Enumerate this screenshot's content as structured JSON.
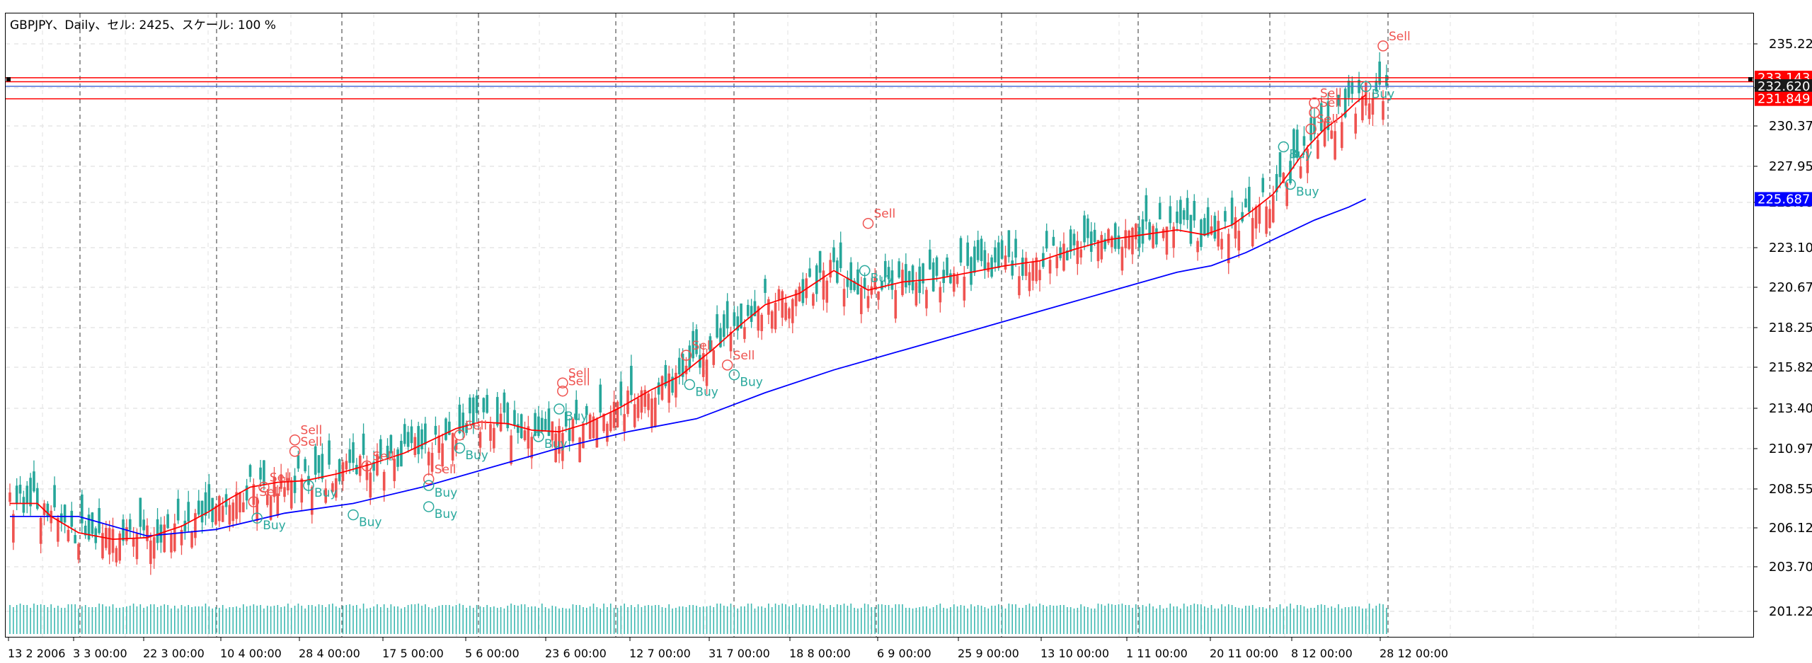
{
  "header": {
    "title": "GBPJPY、Daily、セル: 2425、スケール: 100 %"
  },
  "chart_data": {
    "type": "candlestick",
    "symbol": "GBPJPY",
    "timeframe": "Daily",
    "grid": true,
    "y_ticks": [
      "235.225",
      "232.620",
      "230.375",
      "227.950",
      "225.687",
      "223.100",
      "220.675",
      "218.250",
      "215.825",
      "213.400",
      "210.975",
      "208.550",
      "206.125",
      "203.700",
      "201.225"
    ],
    "x_ticks": [
      "13 2 2006",
      "3 3 00:00",
      "22 3 00:00",
      "10 4 00:00",
      "28 4 00:00",
      "17 5 00:00",
      "5 6 00:00",
      "23 6 00:00",
      "12 7 00:00",
      "31 7 00:00",
      "18 8 00:00",
      "6 9 00:00",
      "25 9 00:00",
      "13 10 00:00",
      "1 11 00:00",
      "20 11 00:00",
      "8 12 00:00",
      "28 12 00:00"
    ],
    "price_badges": [
      {
        "label": "233.143",
        "value": 233.143,
        "color": "#ff0000"
      },
      {
        "label": "232.620",
        "value": 232.62,
        "color": "#1a1a1a"
      },
      {
        "label": "231.849",
        "value": 231.849,
        "color": "#ff0000"
      },
      {
        "label": "225.687",
        "value": 225.687,
        "color": "#0000ff"
      }
    ],
    "horizontal_lines": [
      {
        "value": 233.143,
        "color": "#ff0000"
      },
      {
        "value": 232.9,
        "color": "#ff0000"
      },
      {
        "value": 232.62,
        "color": "#4a6fd6"
      },
      {
        "value": 231.849,
        "color": "#ff0000"
      }
    ],
    "ma_fast": {
      "color": "#ff0000",
      "points": [
        [
          0,
          207.0
        ],
        [
          8,
          207.0
        ],
        [
          12,
          206.2
        ],
        [
          20,
          205.2
        ],
        [
          30,
          204.8
        ],
        [
          40,
          204.9
        ],
        [
          50,
          205.6
        ],
        [
          58,
          206.5
        ],
        [
          64,
          207.3
        ],
        [
          70,
          208.0
        ],
        [
          78,
          208.3
        ],
        [
          86,
          208.4
        ],
        [
          95,
          208.8
        ],
        [
          105,
          209.4
        ],
        [
          115,
          210.1
        ],
        [
          123,
          210.9
        ],
        [
          130,
          211.6
        ],
        [
          137,
          212.0
        ],
        [
          145,
          211.9
        ],
        [
          152,
          211.5
        ],
        [
          160,
          211.4
        ],
        [
          168,
          211.9
        ],
        [
          177,
          212.8
        ],
        [
          187,
          214.0
        ],
        [
          195,
          214.8
        ],
        [
          205,
          216.5
        ],
        [
          213,
          218.0
        ],
        [
          220,
          219.2
        ],
        [
          230,
          219.9
        ],
        [
          240,
          221.3
        ],
        [
          250,
          220.1
        ],
        [
          260,
          220.6
        ],
        [
          270,
          220.8
        ],
        [
          280,
          221.2
        ],
        [
          290,
          221.6
        ],
        [
          300,
          221.9
        ],
        [
          310,
          222.6
        ],
        [
          320,
          223.2
        ],
        [
          330,
          223.5
        ],
        [
          340,
          223.8
        ],
        [
          348,
          223.5
        ],
        [
          356,
          224.1
        ],
        [
          362,
          225.0
        ],
        [
          368,
          226.0
        ],
        [
          373,
          227.4
        ],
        [
          378,
          228.9
        ],
        [
          383,
          230.0
        ],
        [
          388,
          230.8
        ],
        [
          392,
          231.6
        ],
        [
          395,
          232.1
        ]
      ]
    },
    "ma_slow": {
      "color": "#0000ff",
      "points": [
        [
          0,
          206.2
        ],
        [
          20,
          206.2
        ],
        [
          40,
          205.0
        ],
        [
          60,
          205.4
        ],
        [
          80,
          206.4
        ],
        [
          100,
          207.0
        ],
        [
          120,
          208.0
        ],
        [
          140,
          209.2
        ],
        [
          160,
          210.4
        ],
        [
          180,
          211.4
        ],
        [
          200,
          212.2
        ],
        [
          220,
          213.8
        ],
        [
          240,
          215.2
        ],
        [
          260,
          216.4
        ],
        [
          280,
          217.6
        ],
        [
          300,
          218.8
        ],
        [
          320,
          220.0
        ],
        [
          340,
          221.2
        ],
        [
          350,
          221.6
        ],
        [
          360,
          222.4
        ],
        [
          370,
          223.4
        ],
        [
          380,
          224.4
        ],
        [
          390,
          225.2
        ],
        [
          395,
          225.7
        ]
      ]
    },
    "signals": [
      {
        "label": "Sell",
        "x": 83,
        "value": 210.9,
        "type": "sell"
      },
      {
        "label": "Sell",
        "x": 83,
        "value": 210.2,
        "type": "sell"
      },
      {
        "label": "Buy",
        "x": 87,
        "value": 208.1,
        "type": "buy"
      },
      {
        "label": "Sell",
        "x": 74,
        "value": 208.0,
        "type": "sell"
      },
      {
        "label": "Sell",
        "x": 71,
        "value": 207.1,
        "type": "sell"
      },
      {
        "label": "Buy",
        "x": 72,
        "value": 206.1,
        "type": "buy"
      },
      {
        "label": "Sell",
        "x": 104,
        "value": 209.3,
        "type": "sell"
      },
      {
        "label": "Buy",
        "x": 100,
        "value": 206.3,
        "type": "buy"
      },
      {
        "label": "Sell",
        "x": 122,
        "value": 208.5,
        "type": "sell"
      },
      {
        "label": "Buy",
        "x": 122,
        "value": 208.1,
        "type": "buy"
      },
      {
        "label": "Buy",
        "x": 122,
        "value": 206.8,
        "type": "buy"
      },
      {
        "label": "Sell",
        "x": 131,
        "value": 211.2,
        "type": "sell"
      },
      {
        "label": "Buy",
        "x": 131,
        "value": 210.4,
        "type": "buy"
      },
      {
        "label": "Sell",
        "x": 161,
        "value": 214.4,
        "type": "sell"
      },
      {
        "label": "Sell",
        "x": 161,
        "value": 213.9,
        "type": "sell"
      },
      {
        "label": "Buy",
        "x": 160,
        "value": 212.8,
        "type": "buy"
      },
      {
        "label": "Buy",
        "x": 154,
        "value": 211.1,
        "type": "buy"
      },
      {
        "label": "Sell",
        "x": 197,
        "value": 216.1,
        "type": "sell"
      },
      {
        "label": "Buy",
        "x": 198,
        "value": 214.3,
        "type": "buy"
      },
      {
        "label": "Sell",
        "x": 209,
        "value": 215.5,
        "type": "sell"
      },
      {
        "label": "Buy",
        "x": 211,
        "value": 214.9,
        "type": "buy"
      },
      {
        "label": "Sell",
        "x": 250,
        "value": 224.2,
        "type": "sell"
      },
      {
        "label": "Buy",
        "x": 249,
        "value": 221.3,
        "type": "buy"
      },
      {
        "label": "Buy",
        "x": 371,
        "value": 228.9,
        "type": "buy"
      },
      {
        "label": "Buy",
        "x": 373,
        "value": 226.6,
        "type": "buy"
      },
      {
        "label": "Sell",
        "x": 379,
        "value": 230.0,
        "type": "sell"
      },
      {
        "label": "Sell",
        "x": 380,
        "value": 231.0,
        "type": "sell"
      },
      {
        "label": "Sell",
        "x": 380,
        "value": 231.6,
        "type": "sell"
      },
      {
        "label": "Sell",
        "x": 400,
        "value": 235.1,
        "type": "sell"
      },
      {
        "label": "Buy",
        "x": 395,
        "value": 232.6,
        "type": "buy"
      }
    ]
  }
}
